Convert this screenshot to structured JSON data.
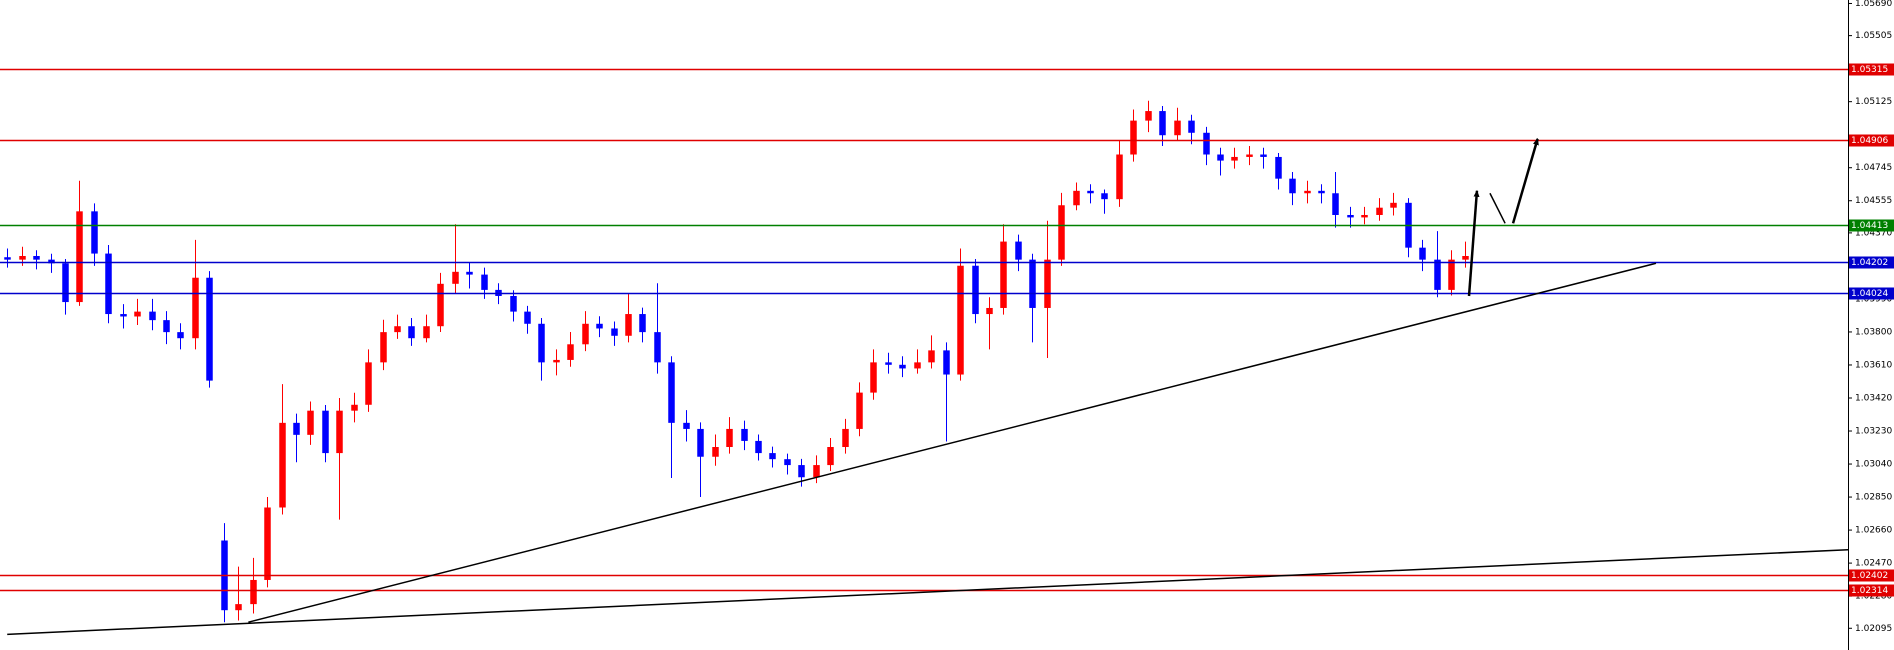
{
  "chart_data": {
    "type": "candlestick",
    "up_color": "#ff0000",
    "down_color": "#0000ff",
    "xlim": [
      -0.5,
      127.5
    ],
    "ylim": [
      1.0197,
      1.0571
    ],
    "yticks": [
      {
        "value": 1.0569,
        "label": "1.05690"
      },
      1.05505,
      1.05125,
      1.04745,
      1.04555,
      {
        "value": 1.0437,
        "label": "1.04370"
      },
      {
        "value": 1.0418,
        "label": "1.04180"
      },
      {
        "value": 1.0399,
        "label": "1.03990"
      },
      {
        "value": 1.038,
        "label": "1.03800"
      },
      {
        "value": 1.0361,
        "label": "1.03610"
      },
      {
        "value": 1.0342,
        "label": "1.03420"
      },
      {
        "value": 1.0323,
        "label": "1.03230"
      },
      {
        "value": 1.0304,
        "label": "1.03040"
      },
      {
        "value": 1.0285,
        "label": "1.02850"
      },
      {
        "value": 1.0266,
        "label": "1.02660"
      },
      {
        "value": 1.0247,
        "label": "1.02470"
      },
      {
        "value": 1.0228,
        "label": "1.02280"
      },
      1.02095
    ],
    "open": [
      1.0423,
      1.04216,
      1.04237,
      1.04216,
      1.04195,
      1.03972,
      1.04494,
      1.04251,
      1.03903,
      1.03889,
      1.03917,
      1.03868,
      1.03799,
      1.03764,
      1.04112,
      1.026,
      1.02199,
      1.02234,
      1.02373,
      1.0279,
      1.03277,
      1.03208,
      1.03347,
      1.03103,
      1.03347,
      1.03381,
      1.03625,
      1.03799,
      1.03833,
      1.03764,
      1.03833,
      1.04077,
      1.04146,
      1.0413,
      1.04042,
      1.04007,
      1.03917,
      1.03847,
      1.03625,
      1.03639,
      1.03729,
      1.03847,
      1.0382,
      1.03778,
      1.03903,
      1.03799,
      1.03625,
      1.03277,
      1.03242,
      1.03082,
      1.03138,
      1.03242,
      1.03173,
      1.03103,
      1.03068,
      1.03034,
      1.02964,
      1.03034,
      1.03138,
      1.03242,
      1.03451,
      1.03625,
      1.03611,
      1.0359,
      1.03625,
      1.03694,
      1.03555,
      1.04181,
      1.03903,
      1.03938,
      1.0432,
      1.04216,
      1.03938,
      1.04216,
      1.04529,
      1.04612,
      1.04598,
      1.04564,
      1.04821,
      1.05016,
      1.05071,
      1.04932,
      1.05016,
      1.04946,
      1.04821,
      1.04786,
      1.04807,
      1.04821,
      1.04807,
      1.04682,
      1.04598,
      1.04612,
      1.04598,
      1.04473,
      1.04459,
      1.04473,
      1.04515,
      1.04543,
      1.04285,
      1.04216,
      1.04042,
      1.04216
    ],
    "high": [
      1.0428,
      1.0429,
      1.0427,
      1.0425,
      1.0422,
      1.0467,
      1.0454,
      1.043,
      1.0396,
      1.0399,
      1.0399,
      1.0392,
      1.0385,
      1.0433,
      1.0415,
      1.027,
      1.0245,
      1.025,
      1.0285,
      1.035,
      1.0333,
      1.034,
      1.0338,
      1.0342,
      1.0345,
      1.037,
      1.0387,
      1.039,
      1.0388,
      1.039,
      1.0414,
      1.0442,
      1.042,
      1.0417,
      1.0408,
      1.0404,
      1.0395,
      1.0388,
      1.037,
      1.038,
      1.0392,
      1.0389,
      1.0386,
      1.0402,
      1.0394,
      1.0408,
      1.0366,
      1.0335,
      1.0328,
      1.0321,
      1.0331,
      1.0329,
      1.0321,
      1.0314,
      1.031,
      1.0307,
      1.0309,
      1.0319,
      1.033,
      1.0351,
      1.037,
      1.0368,
      1.0366,
      1.037,
      1.0378,
      1.0374,
      1.0428,
      1.0422,
      1.04,
      1.0442,
      1.0436,
      1.0425,
      1.0444,
      1.046,
      1.0466,
      1.0465,
      1.0462,
      1.049,
      1.0508,
      1.0513,
      1.051,
      1.0509,
      1.0505,
      1.0498,
      1.0486,
      1.0486,
      1.0487,
      1.0486,
      1.0483,
      1.0472,
      1.0467,
      1.0465,
      1.0472,
      1.0452,
      1.0452,
      1.0457,
      1.046,
      1.0457,
      1.0433,
      1.0438,
      1.0427,
      1.0432
    ],
    "low": [
      1.0417,
      1.0418,
      1.0416,
      1.0414,
      1.039,
      1.0395,
      1.0418,
      1.0385,
      1.0382,
      1.0384,
      1.0381,
      1.0373,
      1.037,
      1.037,
      1.0348,
      1.0213,
      1.0214,
      1.0218,
      1.0233,
      1.0275,
      1.0305,
      1.0315,
      1.0305,
      1.0272,
      1.0328,
      1.0334,
      1.0358,
      1.0376,
      1.0372,
      1.0374,
      1.038,
      1.0402,
      1.0405,
      1.0399,
      1.0396,
      1.0386,
      1.0379,
      1.0352,
      1.0355,
      1.036,
      1.0369,
      1.0377,
      1.0372,
      1.0374,
      1.0374,
      1.0356,
      1.0296,
      1.0317,
      1.0285,
      1.0303,
      1.031,
      1.0312,
      1.0306,
      1.0302,
      1.0298,
      1.0291,
      1.0293,
      1.03,
      1.031,
      1.032,
      1.0341,
      1.0356,
      1.0354,
      1.0356,
      1.0359,
      1.0317,
      1.0352,
      1.0385,
      1.037,
      1.039,
      1.0415,
      1.0374,
      1.0365,
      1.0418,
      1.045,
      1.0454,
      1.0448,
      1.0452,
      1.0478,
      1.0495,
      1.0487,
      1.049,
      1.0488,
      1.0476,
      1.047,
      1.0474,
      1.0476,
      1.0474,
      1.0462,
      1.0453,
      1.0454,
      1.0454,
      1.044,
      1.044,
      1.0442,
      1.0444,
      1.0447,
      1.0423,
      1.0415,
      1.04,
      1.0401,
      1.0417
    ],
    "close": [
      1.04216,
      1.04237,
      1.04216,
      1.04195,
      1.03972,
      1.04494,
      1.04251,
      1.03903,
      1.03889,
      1.03917,
      1.03868,
      1.03799,
      1.03764,
      1.04112,
      1.0352,
      1.02199,
      1.02234,
      1.02373,
      1.0279,
      1.03277,
      1.03208,
      1.03347,
      1.03103,
      1.03347,
      1.03381,
      1.03625,
      1.03799,
      1.03833,
      1.03764,
      1.03833,
      1.04077,
      1.04146,
      1.0413,
      1.04042,
      1.04007,
      1.03917,
      1.03847,
      1.03625,
      1.03639,
      1.03729,
      1.03847,
      1.0382,
      1.03778,
      1.03903,
      1.03799,
      1.03625,
      1.03277,
      1.03242,
      1.03082,
      1.03138,
      1.03242,
      1.03173,
      1.03103,
      1.03068,
      1.03034,
      1.02964,
      1.03034,
      1.03138,
      1.03242,
      1.03451,
      1.03625,
      1.03611,
      1.0359,
      1.03625,
      1.03694,
      1.03555,
      1.04181,
      1.03903,
      1.03938,
      1.0432,
      1.04216,
      1.03938,
      1.04216,
      1.04529,
      1.04612,
      1.04598,
      1.04564,
      1.04821,
      1.05016,
      1.05071,
      1.04932,
      1.05016,
      1.04946,
      1.04821,
      1.04786,
      1.04807,
      1.04821,
      1.04807,
      1.04682,
      1.04598,
      1.04612,
      1.04598,
      1.04473,
      1.04459,
      1.04473,
      1.04515,
      1.04543,
      1.04285,
      1.04216,
      1.04042,
      1.04216,
      1.04237
    ],
    "levels": [
      {
        "value": 1.05315,
        "color": "#e00000"
      },
      {
        "value": 1.04906,
        "color": "#e00000"
      },
      {
        "value": 1.04413,
        "color": "#008000"
      },
      {
        "value": 1.04202,
        "color": "#0000cc"
      },
      {
        "value": 1.04024,
        "color": "#0000cc"
      },
      {
        "value": 1.02402,
        "color": "#e00000"
      },
      {
        "value": 1.02314,
        "color": "#e00000"
      }
    ],
    "drawings": [
      {
        "type": "trendline",
        "x": [
          16.7,
          114.2
        ],
        "y": [
          1.0213,
          1.04195
        ]
      },
      {
        "type": "trendline",
        "x": [
          0,
          127.5
        ],
        "y": [
          1.0206,
          1.02547
        ]
      },
      {
        "type": "arrow",
        "x": [
          101.25,
          101.8
        ],
        "y": [
          1.04007,
          1.04612
        ]
      },
      {
        "type": "trendline",
        "x": [
          102.7,
          103.75
        ],
        "y": [
          1.04598,
          1.04425
        ]
      },
      {
        "type": "arrow",
        "x": [
          104.3,
          106
        ],
        "y": [
          1.04425,
          1.04911
        ]
      }
    ]
  }
}
